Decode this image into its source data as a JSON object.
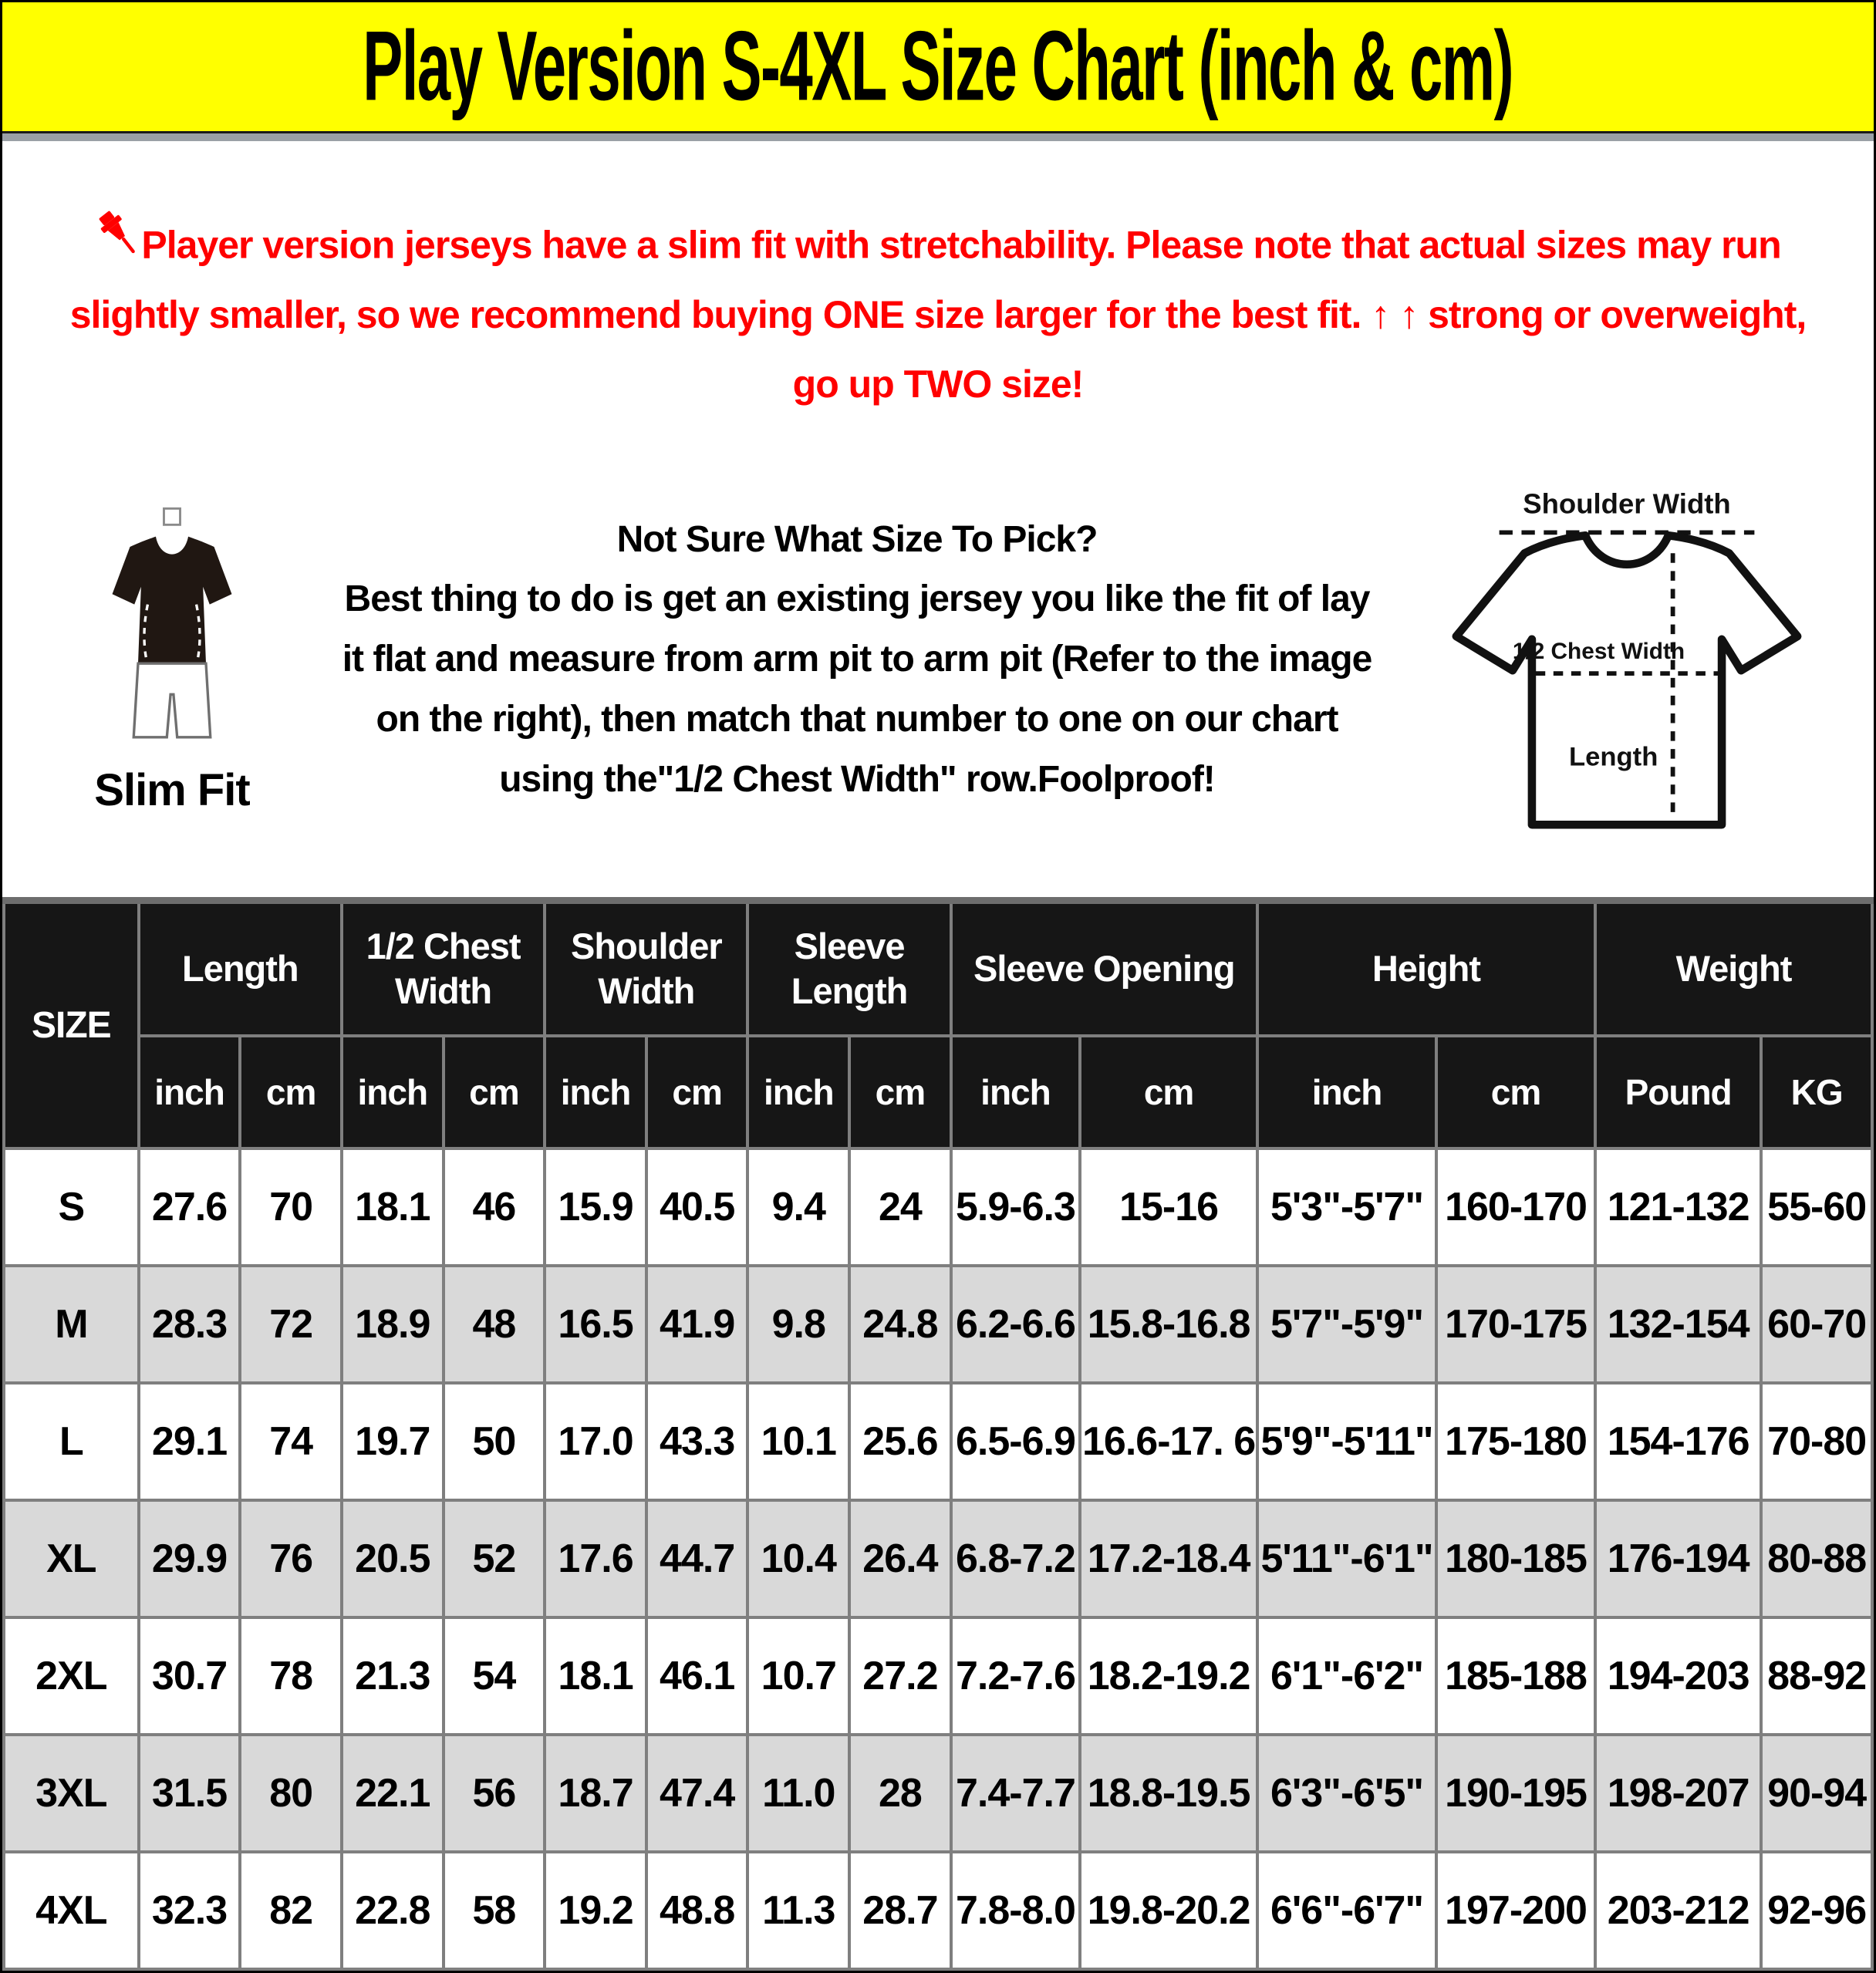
{
  "colors": {
    "banner_bg": "#ffff00",
    "notice_text": "#ff0000",
    "header_bg": "#161616",
    "row_alt_bg": "#d9d9d9"
  },
  "banner": {
    "title": "Play Version S-4XL Size Chart (inch & cm)"
  },
  "notice": {
    "icon": "pushpin-icon",
    "text": "Player version jerseys have a slim fit with stretchability. Please note that actual sizes may run slightly smaller, so we recommend buying ONE size larger for the best fit. ↑ ↑ strong or overweight, go up TWO size!"
  },
  "guide": {
    "slim_fit_label": "Slim Fit",
    "heading": "Not Sure What Size To Pick?",
    "body": "Best thing to do is get an existing jersey you like the fit of lay it flat and measure from arm pit to arm pit (Refer to the image on the right), then match that number to one on our chart using the\"1/2 Chest Width\" row.Foolproof!",
    "diagram": {
      "shoulder_width": "Shoulder Width",
      "half_chest_width": "1/2 Chest Width",
      "length": "Length"
    }
  },
  "table": {
    "size_header": "SIZE",
    "groups": [
      {
        "label": "Length",
        "units": [
          "inch",
          "cm"
        ]
      },
      {
        "label": "1/2 Chest Width",
        "units": [
          "inch",
          "cm"
        ]
      },
      {
        "label": "Shoulder Width",
        "units": [
          "inch",
          "cm"
        ]
      },
      {
        "label": "Sleeve Length",
        "units": [
          "inch",
          "cm"
        ]
      },
      {
        "label": "Sleeve Opening",
        "units": [
          "inch",
          "cm"
        ]
      },
      {
        "label": "Height",
        "units": [
          "inch",
          "cm"
        ]
      },
      {
        "label": "Weight",
        "units": [
          "Pound",
          "KG"
        ]
      }
    ],
    "rows": [
      {
        "size": "S",
        "cells": [
          "27.6",
          "70",
          "18.1",
          "46",
          "15.9",
          "40.5",
          "9.4",
          "24",
          "5.9-6.3",
          "15-16",
          "5'3\"-5'7\"",
          "160-170",
          "121-132",
          "55-60"
        ]
      },
      {
        "size": "M",
        "cells": [
          "28.3",
          "72",
          "18.9",
          "48",
          "16.5",
          "41.9",
          "9.8",
          "24.8",
          "6.2-6.6",
          "15.8-16.8",
          "5'7\"-5'9\"",
          "170-175",
          "132-154",
          "60-70"
        ]
      },
      {
        "size": "L",
        "cells": [
          "29.1",
          "74",
          "19.7",
          "50",
          "17.0",
          "43.3",
          "10.1",
          "25.6",
          "6.5-6.9",
          "16.6-17. 6",
          "5'9\"-5'11\"",
          "175-180",
          "154-176",
          "70-80"
        ]
      },
      {
        "size": "XL",
        "cells": [
          "29.9",
          "76",
          "20.5",
          "52",
          "17.6",
          "44.7",
          "10.4",
          "26.4",
          "6.8-7.2",
          "17.2-18.4",
          "5'11\"-6'1\"",
          "180-185",
          "176-194",
          "80-88"
        ]
      },
      {
        "size": "2XL",
        "cells": [
          "30.7",
          "78",
          "21.3",
          "54",
          "18.1",
          "46.1",
          "10.7",
          "27.2",
          "7.2-7.6",
          "18.2-19.2",
          "6'1\"-6'2\"",
          "185-188",
          "194-203",
          "88-92"
        ]
      },
      {
        "size": "3XL",
        "cells": [
          "31.5",
          "80",
          "22.1",
          "56",
          "18.7",
          "47.4",
          "11.0",
          "28",
          "7.4-7.7",
          "18.8-19.5",
          "6'3\"-6'5\"",
          "190-195",
          "198-207",
          "90-94"
        ]
      },
      {
        "size": "4XL",
        "cells": [
          "32.3",
          "82",
          "22.8",
          "58",
          "19.2",
          "48.8",
          "11.3",
          "28.7",
          "7.8-8.0",
          "19.8-20.2",
          "6'6\"-6'7\"",
          "197-200",
          "203-212",
          "92-96"
        ]
      }
    ]
  }
}
